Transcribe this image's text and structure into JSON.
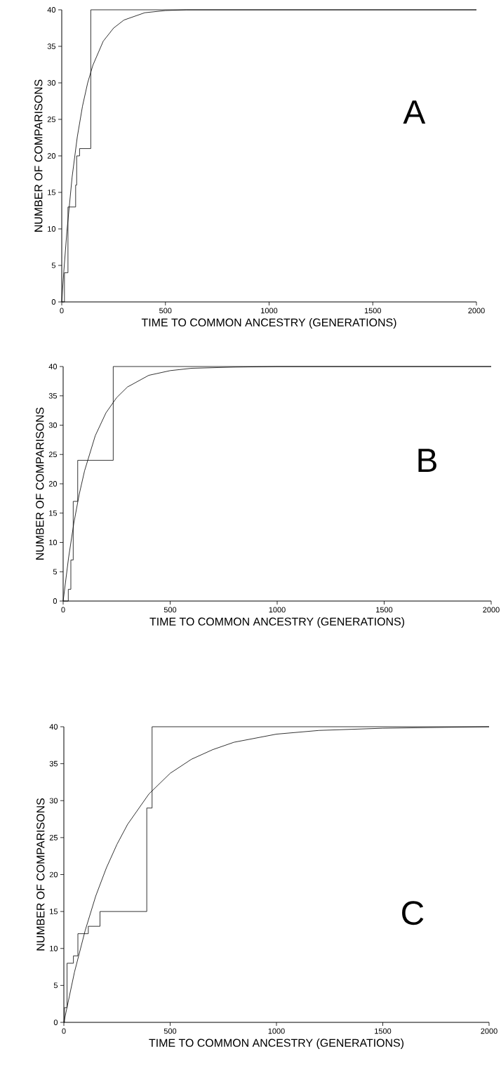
{
  "chart_data": [
    {
      "type": "line",
      "xlabel": "TIME TO COMMON ANCESTRY (GENERATIONS)",
      "ylabel": "NUMBER OF COMPARISONS",
      "annotations": [
        "A"
      ],
      "xlim": [
        0,
        2000
      ],
      "ylim": [
        0,
        40
      ],
      "xticks": [
        0,
        500,
        1000,
        1500,
        2000
      ],
      "yticks": [
        0,
        5,
        10,
        15,
        20,
        25,
        30,
        35,
        40
      ],
      "series": [
        {
          "type": "step",
          "color": "#000000",
          "x": [
            0,
            13,
            30,
            67,
            72,
            86,
            140,
            2000
          ],
          "values": [
            0,
            4,
            13,
            16,
            20,
            21,
            40,
            40
          ]
        },
        {
          "type": "line",
          "color": "#000000",
          "x": [
            0,
            10,
            25,
            50,
            75,
            100,
            125,
            150,
            200,
            250,
            300,
            400,
            500,
            600,
            800,
            1000,
            1500,
            2000
          ],
          "values": [
            0,
            4.2,
            9.7,
            17.1,
            22.6,
            26.8,
            30.0,
            32.4,
            35.7,
            37.5,
            38.6,
            39.6,
            39.9,
            40,
            40,
            40,
            40,
            40
          ]
        }
      ]
    },
    {
      "type": "line",
      "xlabel": "TIME TO COMMON ANCESTRY (GENERATIONS)",
      "ylabel": "NUMBER OF COMPARISONS",
      "annotations": [
        "B"
      ],
      "xlim": [
        0,
        2000
      ],
      "ylim": [
        0,
        40
      ],
      "xticks": [
        0,
        500,
        1000,
        1500,
        2000
      ],
      "yticks": [
        0,
        5,
        10,
        15,
        20,
        25,
        30,
        35,
        40
      ],
      "series": [
        {
          "type": "step",
          "color": "#000000",
          "x": [
            0,
            24,
            36,
            47,
            68,
            234,
            2000
          ],
          "values": [
            0,
            2,
            7,
            17,
            24,
            40,
            40
          ]
        },
        {
          "type": "line",
          "color": "#000000",
          "x": [
            0,
            25,
            50,
            75,
            100,
            150,
            200,
            250,
            300,
            400,
            500,
            600,
            800,
            1000,
            2000
          ],
          "values": [
            0,
            7.3,
            13.3,
            18.2,
            22.2,
            28.2,
            32.1,
            34.7,
            36.5,
            38.5,
            39.3,
            39.7,
            39.9,
            40,
            40
          ]
        }
      ]
    },
    {
      "type": "line",
      "xlabel": "TIME TO COMMON ANCESTRY (GENERATIONS)",
      "ylabel": "NUMBER OF COMPARISONS",
      "annotations": [
        "C"
      ],
      "xlim": [
        0,
        2000
      ],
      "ylim": [
        0,
        40
      ],
      "xticks": [
        0,
        500,
        1000,
        1500,
        2000
      ],
      "yticks": [
        0,
        5,
        10,
        15,
        20,
        25,
        30,
        35,
        40
      ],
      "series": [
        {
          "type": "step",
          "color": "#000000",
          "x": [
            0,
            3,
            15,
            45,
            66,
            115,
            170,
            390,
            415,
            2000
          ],
          "values": [
            0,
            2,
            8,
            9,
            12,
            13,
            15,
            29,
            40,
            40
          ]
        },
        {
          "type": "line",
          "color": "#000000",
          "x": [
            0,
            50,
            100,
            150,
            200,
            250,
            300,
            400,
            500,
            600,
            700,
            800,
            1000,
            1200,
            1500,
            2000
          ],
          "values": [
            0,
            6.8,
            12.4,
            17.1,
            20.9,
            24.1,
            26.8,
            30.9,
            33.7,
            35.6,
            36.9,
            37.9,
            39.0,
            39.5,
            39.8,
            40
          ]
        }
      ]
    }
  ]
}
